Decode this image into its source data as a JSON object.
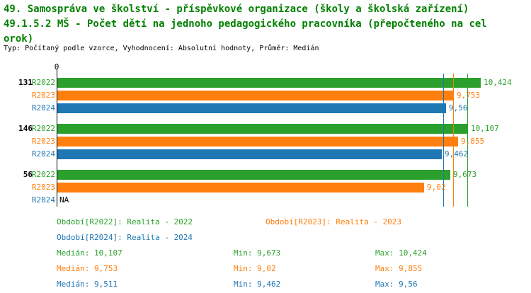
{
  "header": {
    "title_line1": "49. Samospráva ve školství - příspěvkové organizace (školy a školská zařízení)",
    "title_line2": "49.1.5.2 MŠ - Počet dětí na jednoho pedagogického pracovníka (přepočteného na cel",
    "title_line3": "orok)",
    "subtitle": "Typ: Počítaný podle vzorce, Vyhodnocení: Absolutní hodnoty, Průměr: Medián"
  },
  "colors": {
    "title_green": "#008000",
    "series_r2022": "#2ca02c",
    "series_r2023": "#ff7f0e",
    "series_r2024": "#1f77b4",
    "axis": "#000000"
  },
  "chart_data": {
    "type": "bar",
    "orientation": "horizontal",
    "x_axis": {
      "zero_label": "0",
      "xlim": [
        0,
        11.5
      ],
      "grid": false
    },
    "series": [
      {
        "name": "R2022",
        "color": "#2ca02c"
      },
      {
        "name": "R2023",
        "color": "#ff7f0e"
      },
      {
        "name": "R2024",
        "color": "#1f77b4"
      }
    ],
    "groups": [
      {
        "label": "131",
        "bars": [
          {
            "series": "R2022",
            "value": 10.424,
            "display": "10,424"
          },
          {
            "series": "R2023",
            "value": 9.753,
            "display": "9,753"
          },
          {
            "series": "R2024",
            "value": 9.56,
            "display": "9,56"
          }
        ]
      },
      {
        "label": "146",
        "bars": [
          {
            "series": "R2022",
            "value": 10.107,
            "display": "10,107"
          },
          {
            "series": "R2023",
            "value": 9.855,
            "display": "9,855"
          },
          {
            "series": "R2024",
            "value": 9.462,
            "display": "9,462"
          }
        ]
      },
      {
        "label": "56",
        "bars": [
          {
            "series": "R2022",
            "value": 9.673,
            "display": "9,673"
          },
          {
            "series": "R2023",
            "value": 9.02,
            "display": "9,02"
          },
          {
            "series": "R2024",
            "value": null,
            "display": "NA"
          }
        ]
      }
    ],
    "median_lines": [
      {
        "series": "R2022",
        "value": 10.107,
        "color": "#2ca02c"
      },
      {
        "series": "R2023",
        "value": 9.753,
        "color": "#ff7f0e"
      },
      {
        "series": "R2024",
        "value": 9.511,
        "color": "#1f77b4"
      }
    ]
  },
  "legend": [
    {
      "label": "Období[R2022]: Realita - 2022",
      "series": "R2022"
    },
    {
      "label": "Období[R2023]: Realita - 2023",
      "series": "R2023"
    },
    {
      "label": "Období[R2024]: Realita - 2024",
      "series": "R2024"
    }
  ],
  "stats": [
    {
      "series": "R2022",
      "median": "Medián: 10,107",
      "min": "Min: 9,673",
      "max": "Max: 10,424"
    },
    {
      "series": "R2023",
      "median": "Medián: 9,753",
      "min": "Min: 9,02",
      "max": "Max: 9,855"
    },
    {
      "series": "R2024",
      "median": "Medián: 9,511",
      "min": "Min: 9,462",
      "max": "Max: 9,56"
    }
  ]
}
